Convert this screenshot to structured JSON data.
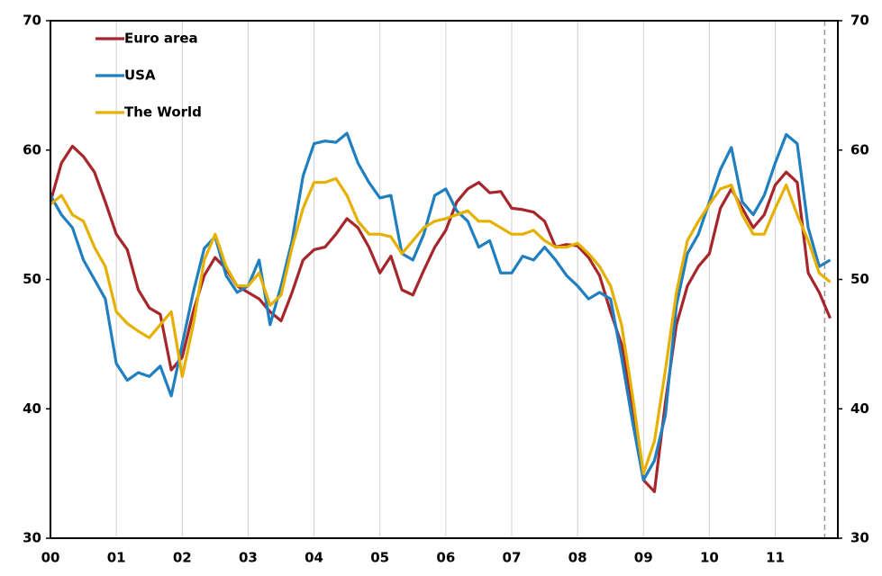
{
  "chart_data": {
    "type": "line",
    "categories": [
      "00",
      null,
      null,
      null,
      null,
      null,
      "01",
      null,
      null,
      null,
      null,
      null,
      "02",
      null,
      null,
      null,
      null,
      null,
      "03",
      null,
      null,
      null,
      null,
      null,
      "04",
      null,
      null,
      null,
      null,
      null,
      "05",
      null,
      null,
      null,
      null,
      null,
      "06",
      null,
      null,
      null,
      null,
      null,
      "07",
      null,
      null,
      null,
      null,
      null,
      "08",
      null,
      null,
      null,
      null,
      null,
      "09",
      null,
      null,
      null,
      null,
      null,
      "10",
      null,
      null,
      null,
      null,
      null,
      "11",
      null,
      null,
      null,
      null,
      null
    ],
    "series": [
      {
        "name": "Euro area",
        "color": "#a6262b",
        "values": [
          56,
          59,
          60.3,
          59.5,
          58.3,
          56,
          53.5,
          52.3,
          49.2,
          47.8,
          47.3,
          43,
          44,
          47.5,
          50.3,
          51.7,
          50.8,
          49.5,
          49,
          48.5,
          47.5,
          46.8,
          49,
          51.5,
          52.3,
          52.5,
          53.5,
          54.7,
          54,
          52.5,
          50.5,
          51.8,
          49.2,
          48.8,
          50.7,
          52.5,
          53.8,
          56,
          57,
          57.5,
          56.7,
          56.8,
          55.5,
          55.4,
          55.2,
          54.5,
          52.5,
          52.7,
          52.6,
          51.7,
          50.3,
          47.5,
          45,
          40,
          34.5,
          33.6,
          40.5,
          46.5,
          49.5,
          51,
          52,
          55.5,
          57,
          55.5,
          54,
          55,
          57.3,
          58.3,
          57.5,
          50.5,
          49,
          47
        ]
      },
      {
        "name": "USA",
        "color": "#1f7fbf",
        "values": [
          56.5,
          55,
          54,
          51.5,
          50,
          48.5,
          43.5,
          42.2,
          42.8,
          42.5,
          43.3,
          41,
          45,
          49,
          52.4,
          53.3,
          50.3,
          49,
          49.5,
          51.5,
          46.5,
          49.5,
          53,
          58,
          60.5,
          60.7,
          60.6,
          61.3,
          59,
          57.5,
          56.3,
          56.5,
          52,
          51.5,
          53.5,
          56.5,
          57,
          55.3,
          54.5,
          52.5,
          53,
          50.5,
          50.5,
          51.8,
          51.5,
          52.5,
          51.5,
          50.3,
          49.5,
          48.5,
          49,
          48.5,
          44,
          39,
          34.5,
          36,
          39.5,
          48,
          52,
          53.5,
          56,
          58.5,
          60.2,
          56,
          55,
          56.5,
          59,
          61.2,
          60.5,
          54,
          51,
          51.5
        ]
      },
      {
        "name": "The World",
        "color": "#e6b000",
        "values": [
          55.8,
          56.5,
          55,
          54.5,
          52.5,
          51,
          47.5,
          46.6,
          46,
          45.5,
          46.5,
          47.5,
          42.5,
          46.5,
          51.5,
          53.5,
          51,
          49.5,
          49.5,
          50.5,
          48,
          48.8,
          52.5,
          55.5,
          57.5,
          57.5,
          57.8,
          56.5,
          54.5,
          53.5,
          53.5,
          53.3,
          52,
          53,
          54,
          54.5,
          54.7,
          55,
          55.3,
          54.5,
          54.5,
          54,
          53.5,
          53.5,
          53.8,
          53,
          52.5,
          52.5,
          52.8,
          52,
          51,
          49.5,
          46.5,
          41,
          35,
          37.5,
          43,
          49,
          53,
          54.5,
          55.8,
          57,
          57.3,
          55,
          53.5,
          53.5,
          55.5,
          57.3,
          55,
          53,
          50.5,
          49.8
        ]
      }
    ],
    "ylim": [
      30,
      70
    ],
    "yticks": [
      30,
      40,
      50,
      60,
      70
    ],
    "grid": true
  }
}
